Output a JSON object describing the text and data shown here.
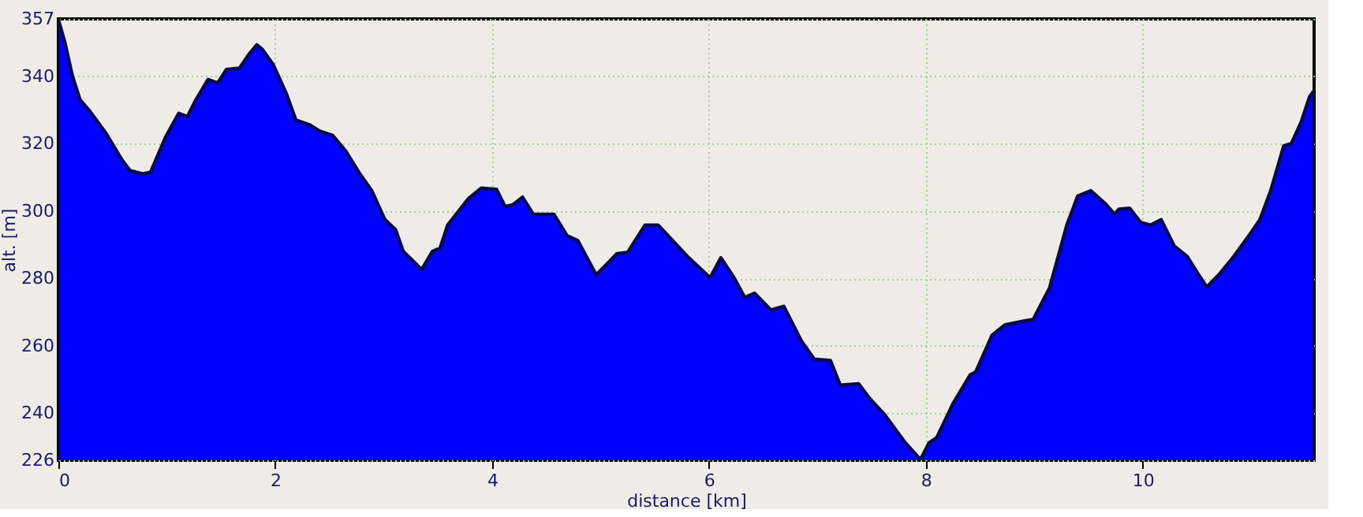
{
  "chart_data": {
    "type": "area",
    "xlabel": "distance [km]",
    "ylabel": "alt. [m]",
    "xlim": [
      0,
      11.58
    ],
    "ylim": [
      226,
      357
    ],
    "xticks": [
      0,
      2,
      4,
      6,
      8,
      10
    ],
    "yticks": [
      226,
      240,
      260,
      280,
      300,
      320,
      340,
      357
    ],
    "grid": true,
    "x": [
      0,
      0.06,
      0.13,
      0.2,
      0.28,
      0.35,
      0.44,
      0.59,
      0.66,
      0.78,
      0.85,
      0.99,
      1.11,
      1.19,
      1.26,
      1.38,
      1.47,
      1.55,
      1.67,
      1.76,
      1.83,
      1.88,
      1.98,
      2.1,
      2.19,
      2.32,
      2.41,
      2.53,
      2.65,
      2.77,
      2.89,
      3.01,
      3.11,
      3.18,
      3.25,
      3.35,
      3.45,
      3.52,
      3.59,
      3.78,
      3.9,
      4.04,
      4.12,
      4.19,
      4.28,
      4.38,
      4.57,
      4.69,
      4.79,
      4.96,
      5.15,
      5.25,
      5.41,
      5.53,
      5.8,
      6.01,
      6.11,
      6.23,
      6.33,
      6.42,
      6.57,
      6.69,
      6.85,
      6.97,
      7.12,
      7.21,
      7.38,
      7.48,
      7.62,
      7.81,
      7.95,
      8.03,
      8.1,
      8.25,
      8.41,
      8.46,
      8.61,
      8.73,
      8.92,
      8.99,
      9.14,
      9.3,
      9.4,
      9.52,
      9.66,
      9.74,
      9.78,
      9.88,
      9.98,
      10.07,
      10.17,
      10.29,
      10.41,
      10.5,
      10.59,
      10.7,
      10.84,
      10.98,
      11.08,
      11.18,
      11.3,
      11.37,
      11.46,
      11.54,
      11.58
    ],
    "series": [
      {
        "color": "#0000ff",
        "values": [
          356.8,
          350,
          340,
          333,
          330,
          327,
          323,
          315,
          312,
          311,
          311.5,
          322,
          329,
          328,
          332.5,
          339,
          338,
          342,
          342.4,
          346.6,
          349.3,
          348,
          343.5,
          335,
          327,
          325.5,
          323.7,
          322.4,
          317.8,
          311.5,
          306,
          297.5,
          294.4,
          288,
          285.8,
          282.6,
          288,
          289,
          295.8,
          303.6,
          306.8,
          306.4,
          301.3,
          301.8,
          304.1,
          299,
          299,
          292.7,
          291.2,
          281,
          287.3,
          287.7,
          295.8,
          295.8,
          286.5,
          280.2,
          286.1,
          280.2,
          274.3,
          275.6,
          270.6,
          271.7,
          261.5,
          256,
          255.6,
          248.3,
          248.7,
          244.4,
          239.5,
          231.2,
          226.2,
          231.2,
          232.7,
          242.8,
          251.4,
          252.2,
          263.1,
          266.2,
          267.4,
          267.8,
          277.1,
          295.8,
          304.4,
          306,
          302,
          299,
          300.5,
          300.8,
          296.6,
          295.8,
          297.4,
          289.6,
          286.5,
          281.8,
          277.4,
          281,
          286.5,
          292.7,
          297.4,
          306,
          319.3,
          320,
          326.3,
          334,
          335.7
        ]
      }
    ]
  }
}
